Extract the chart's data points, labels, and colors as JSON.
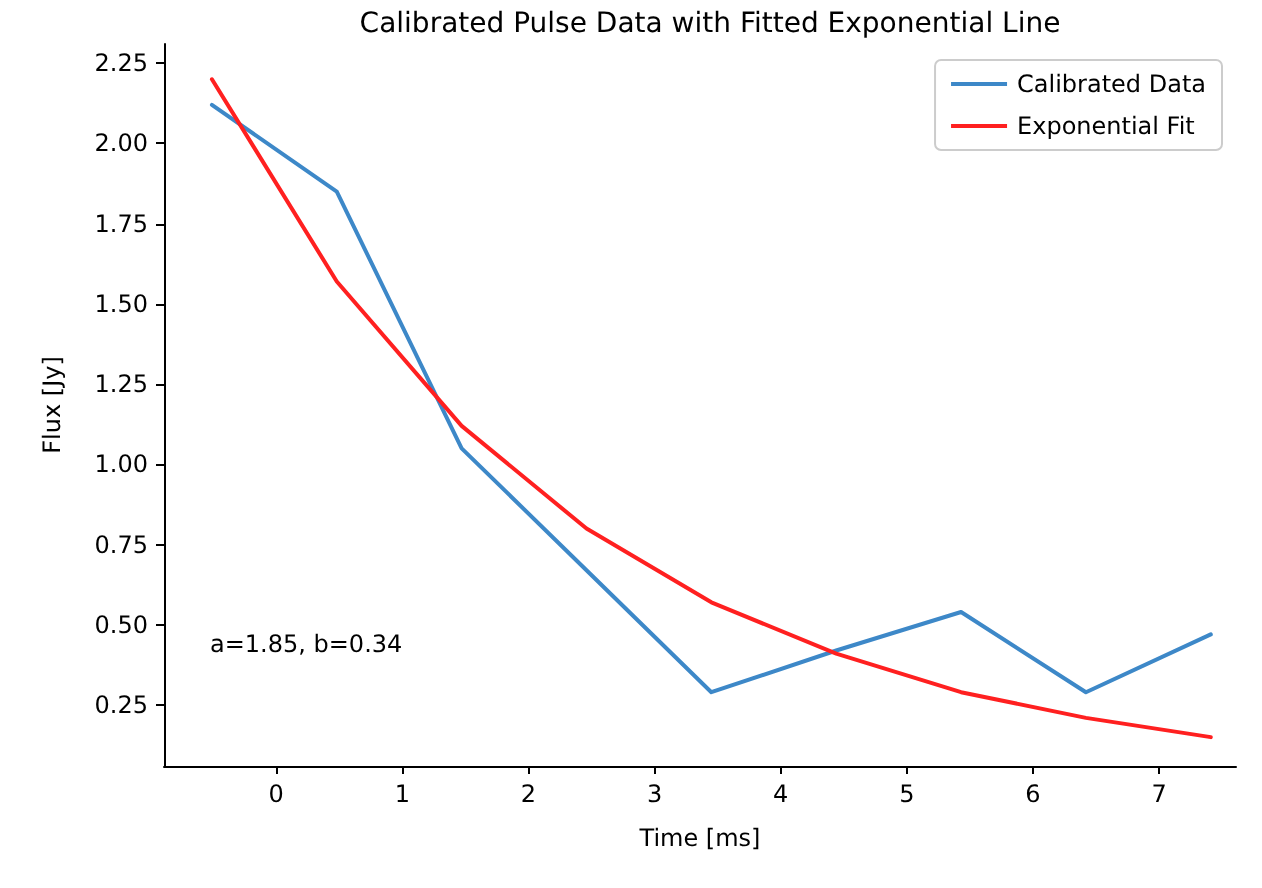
{
  "chart_data": {
    "type": "line",
    "title": "Calibrated Pulse Data with Fitted Exponential Line",
    "xlabel": "Time [ms]",
    "ylabel": "Flux [Jy]",
    "annotations": [
      "a=1.85, b=0.34"
    ],
    "x": [
      -0.51,
      0.48,
      1.47,
      2.46,
      3.45,
      4.44,
      5.43,
      6.42,
      7.41
    ],
    "series": [
      {
        "name": "Calibrated Data",
        "color": "#3d88c8",
        "values": [
          2.12,
          1.85,
          1.05,
          0.67,
          0.29,
          0.42,
          0.54,
          0.29,
          0.47
        ]
      },
      {
        "name": "Exponential Fit",
        "color": "#ff2020",
        "values": [
          2.2,
          1.57,
          1.12,
          0.8,
          0.57,
          0.41,
          0.29,
          0.21,
          0.15
        ]
      }
    ],
    "xlim": [
      -0.89,
      7.61
    ],
    "xticks": [
      0,
      1,
      2,
      3,
      4,
      5,
      6,
      7
    ],
    "ylim": [
      0.06,
      2.31
    ],
    "yticks": [
      {
        "value": 0.25,
        "label": "0.25"
      },
      {
        "value": 0.5,
        "label": "0.50"
      },
      {
        "value": 0.75,
        "label": "0.75"
      },
      {
        "value": 1,
        "label": "1.00"
      },
      {
        "value": 1.25,
        "label": "1.25"
      },
      {
        "value": 1.5,
        "label": "1.50"
      },
      {
        "value": 1.75,
        "label": "1.75"
      },
      {
        "value": 2,
        "label": "2.00"
      },
      {
        "value": 2.25,
        "label": "2.25"
      }
    ],
    "grid": false,
    "legend": "top right",
    "marker": "none",
    "line_style": "solid"
  }
}
